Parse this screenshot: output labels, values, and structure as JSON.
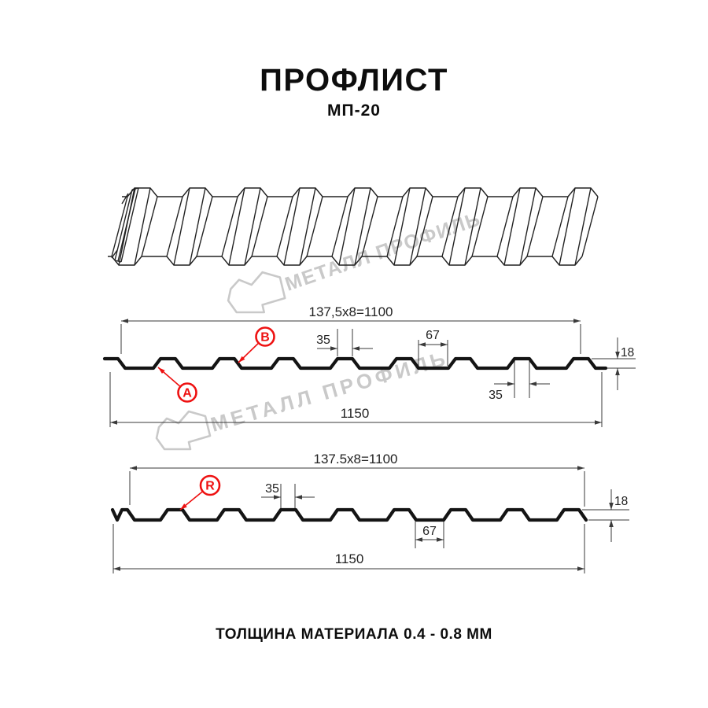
{
  "header": {
    "title": "ПРОФЛИСТ",
    "subtitle": "МП-20"
  },
  "footer": {
    "note": "ТОЛЩИНА МАТЕРИАЛА 0.4 - 0.8 ММ"
  },
  "watermark": {
    "text": "МЕТАЛЛ ПРОФИЛЬ"
  },
  "colors": {
    "red": "#ee1111",
    "line": "#3a3a3a",
    "ink": "#141414",
    "watermark": "#c9c9c9"
  },
  "sections": [
    {
      "name": "profile-cross-section-top",
      "point_labels": [
        {
          "text": "B"
        },
        {
          "text": "A"
        }
      ],
      "dims": {
        "pitch": "137,5x8=1100",
        "crest": "35",
        "valley": "67",
        "crest_bottom": "35",
        "overall": "1150",
        "height": "18"
      }
    },
    {
      "name": "profile-cross-section-bottom",
      "point_labels": [
        {
          "text": "R"
        }
      ],
      "dims": {
        "pitch": "137.5x8=1100",
        "crest": "35",
        "valley": "67",
        "overall": "1150",
        "height": "18"
      }
    }
  ]
}
